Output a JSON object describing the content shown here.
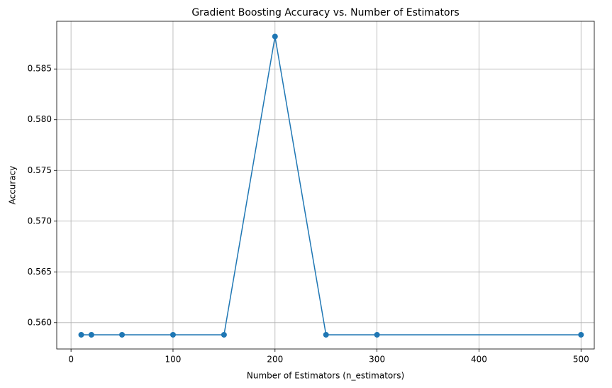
{
  "chart_data": {
    "type": "line",
    "title": "Gradient Boosting Accuracy vs. Number of Estimators",
    "x_label": "Number of Estimators (n_estimators)",
    "y_label": "Accuracy",
    "x": [
      10,
      20,
      50,
      100,
      150,
      200,
      250,
      300,
      500
    ],
    "series": [
      {
        "name": "Accuracy",
        "color": "#1f77b4",
        "values": [
          0.5588,
          0.5588,
          0.5588,
          0.5588,
          0.5588,
          0.5882,
          0.5588,
          0.5588,
          0.5588
        ]
      }
    ],
    "xlim": [
      -14,
      513
    ],
    "xticks": [
      0,
      100,
      200,
      300,
      400,
      500
    ],
    "ylim": [
      0.5574,
      0.5897
    ],
    "yticks": [
      {
        "value": 0.56,
        "label": "0.560"
      },
      0.565,
      {
        "value": 0.57,
        "label": "0.570"
      },
      0.575,
      {
        "value": 0.58,
        "label": "0.580"
      },
      0.585
    ],
    "grid": true
  }
}
